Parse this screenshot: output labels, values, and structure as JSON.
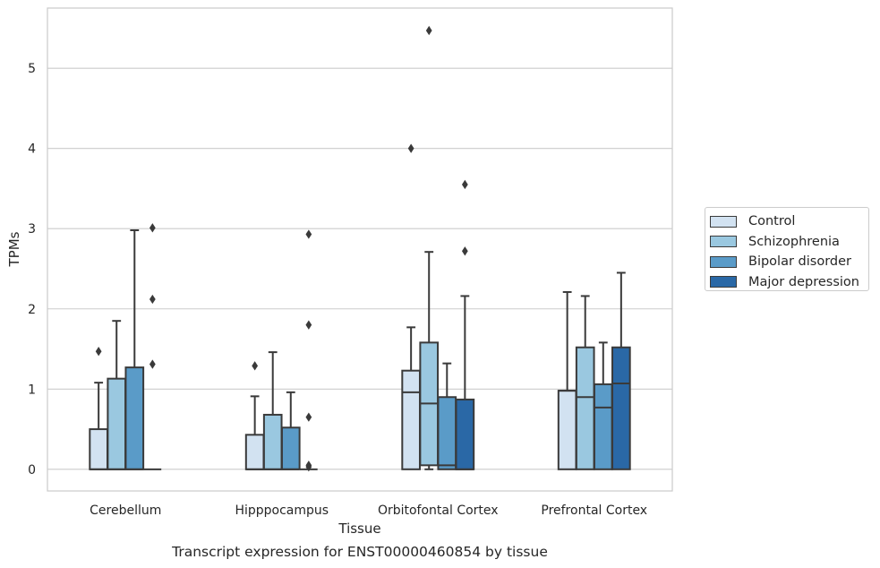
{
  "chart_data": {
    "type": "box",
    "title": "Transcript expression for ENST00000460854 by tissue",
    "xlabel": "Tissue",
    "ylabel": "TPMs",
    "categories": [
      "Cerebellum",
      "Hipppocampus",
      "Orbitofontal Cortex",
      "Prefrontal Cortex"
    ],
    "ylim": [
      -0.27,
      5.75
    ],
    "yticks": [
      0,
      1,
      2,
      3,
      4,
      5
    ],
    "grid": true,
    "legend_position": "right",
    "series": [
      {
        "name": "Control",
        "color": "#d2e2f1",
        "boxes": [
          {
            "q1": 0,
            "median": 0,
            "q3": 0.5,
            "whisker_low": 0,
            "whisker_high": 1.08,
            "outliers": [
              1.47
            ]
          },
          {
            "q1": 0,
            "median": 0,
            "q3": 0.43,
            "whisker_low": 0,
            "whisker_high": 0.91,
            "outliers": [
              1.29
            ]
          },
          {
            "q1": 0,
            "median": 0.96,
            "q3": 1.23,
            "whisker_low": 0,
            "whisker_high": 1.77,
            "outliers": [
              4.0
            ]
          },
          {
            "q1": 0,
            "median": 0.98,
            "q3": 0.98,
            "whisker_low": 0,
            "whisker_high": 2.21,
            "outliers": []
          }
        ]
      },
      {
        "name": "Schizophrenia",
        "color": "#9ac8e0",
        "boxes": [
          {
            "q1": 0,
            "median": 0,
            "q3": 1.13,
            "whisker_low": 0,
            "whisker_high": 1.85,
            "outliers": []
          },
          {
            "q1": 0,
            "median": 0,
            "q3": 0.68,
            "whisker_low": 0,
            "whisker_high": 1.46,
            "outliers": []
          },
          {
            "q1": 0.05,
            "median": 0.82,
            "q3": 1.58,
            "whisker_low": 0,
            "whisker_high": 2.71,
            "outliers": [
              5.47
            ]
          },
          {
            "q1": 0,
            "median": 0.9,
            "q3": 1.52,
            "whisker_low": 0,
            "whisker_high": 2.16,
            "outliers": []
          }
        ]
      },
      {
        "name": "Bipolar disorder",
        "color": "#5a9bc8",
        "boxes": [
          {
            "q1": 0,
            "median": 0,
            "q3": 1.27,
            "whisker_low": 0,
            "whisker_high": 2.98,
            "outliers": []
          },
          {
            "q1": 0,
            "median": 0,
            "q3": 0.52,
            "whisker_low": 0,
            "whisker_high": 0.96,
            "outliers": []
          },
          {
            "q1": 0,
            "median": 0.05,
            "q3": 0.9,
            "whisker_low": 0,
            "whisker_high": 1.32,
            "outliers": []
          },
          {
            "q1": 0,
            "median": 0.77,
            "q3": 1.06,
            "whisker_low": 0,
            "whisker_high": 1.58,
            "outliers": []
          }
        ]
      },
      {
        "name": "Major depression",
        "color": "#2a68a6",
        "boxes": [
          {
            "q1": 0,
            "median": 0,
            "q3": 0,
            "whisker_low": 0,
            "whisker_high": 0,
            "outliers": [
              3.01,
              2.12,
              1.31
            ]
          },
          {
            "q1": 0,
            "median": 0,
            "q3": 0,
            "whisker_low": 0,
            "whisker_high": 0,
            "outliers": [
              2.93,
              1.8,
              0.65,
              0.05,
              0.03
            ]
          },
          {
            "q1": 0,
            "median": 0,
            "q3": 0.87,
            "whisker_low": 0,
            "whisker_high": 2.16,
            "outliers": [
              3.55,
              2.72
            ]
          },
          {
            "q1": 0,
            "median": 1.07,
            "q3": 1.52,
            "whisker_low": 0,
            "whisker_high": 2.45,
            "outliers": []
          }
        ]
      }
    ]
  }
}
